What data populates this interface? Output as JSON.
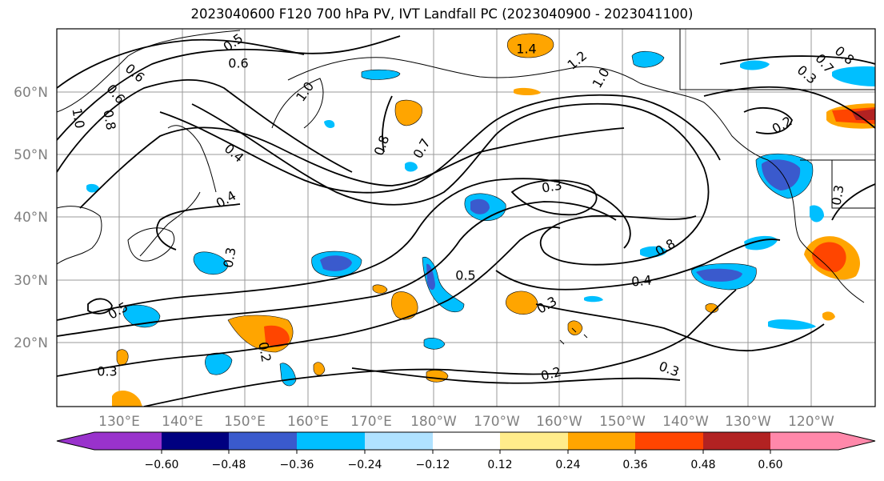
{
  "title": "2023040600 F120 700 hPa PV, IVT Landfall PC (2023040900 - 2023041100)",
  "lat_ticks": [
    "60°N",
    "50°N",
    "40°N",
    "30°N",
    "20°N"
  ],
  "lon_ticks": [
    "130°E",
    "140°E",
    "150°E",
    "160°E",
    "170°E",
    "180°W",
    "170°W",
    "160°W",
    "150°W",
    "140°W",
    "130°W",
    "120°W"
  ],
  "contour_labels": [
    "0.5",
    "0.6",
    "0.6",
    "0.6",
    "1.0",
    "0.8",
    "1.0",
    "1.4",
    "1.2",
    "1.0",
    "0.8",
    "0.7",
    "0.4",
    "0.4",
    "0.3",
    "0.3",
    "0.8",
    "0.7",
    "0.2",
    "0.3",
    "0.3",
    "0.8",
    "0.4",
    "0.5",
    "0.5",
    "0.3",
    "0.2",
    "0.2",
    "0.3",
    "0.3"
  ],
  "colorbar": {
    "ticks": [
      "−0.60",
      "−0.48",
      "−0.36",
      "−0.24",
      "−0.12",
      "0.12",
      "0.24",
      "0.36",
      "0.48",
      "0.60"
    ],
    "colors": [
      "#9932cc",
      "#000080",
      "#3a5acd",
      "#00bfff",
      "#b0e2ff",
      "#ffffff",
      "#ffec8b",
      "#ffa500",
      "#ff4500",
      "#b22222",
      "#ff88aa"
    ]
  }
}
